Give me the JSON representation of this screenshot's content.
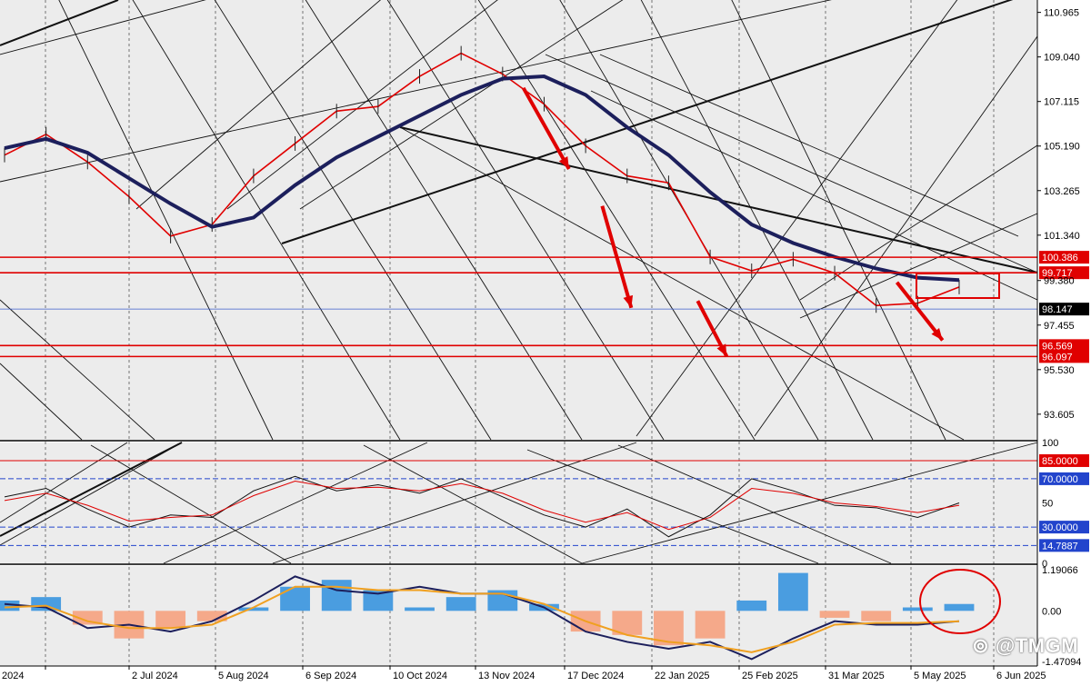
{
  "chart_data": [
    {
      "type": "line",
      "panel": "price",
      "instrument_note": "",
      "x_dates": [
        "2024",
        "2 Jul 2024",
        "5 Aug 2024",
        "6 Sep 2024",
        "10 Oct 2024",
        "13 Nov 2024",
        "17 Dec 2024",
        "22 Jan 2025",
        "25 Feb 2025",
        "31 Mar 2025",
        "5 May 2025",
        "6 Jun 2025"
      ],
      "y_ticks": [
        "110.965",
        "109.040",
        "107.115",
        "105.190",
        "103.265",
        "101.340",
        "99.380",
        "97.455",
        "95.530",
        "93.605"
      ],
      "ylim": [
        92.5,
        111.5
      ],
      "series": [
        {
          "values": [
            [
              0,
              104.8
            ],
            [
              1,
              105.7
            ],
            [
              2,
              104.5
            ],
            [
              3,
              103.0
            ],
            [
              4,
              101.3
            ],
            [
              5,
              101.8
            ],
            [
              6,
              103.9
            ],
            [
              7,
              105.3
            ],
            [
              8,
              106.7
            ],
            [
              9,
              106.9
            ],
            [
              10,
              108.2
            ],
            [
              11,
              109.2
            ],
            [
              12,
              108.3
            ],
            [
              13,
              107.0
            ],
            [
              14,
              105.2
            ],
            [
              15,
              103.9
            ],
            [
              16,
              103.6
            ],
            [
              17,
              100.4
            ],
            [
              18,
              99.8
            ],
            [
              19,
              100.3
            ],
            [
              20,
              99.7
            ],
            [
              21,
              98.3
            ],
            [
              22,
              98.4
            ],
            [
              23,
              99.1
            ]
          ]
        },
        {
          "values": [
            [
              0,
              105.1
            ],
            [
              1,
              105.5
            ],
            [
              2,
              104.9
            ],
            [
              3,
              103.8
            ],
            [
              4,
              102.7
            ],
            [
              5,
              101.7
            ],
            [
              6,
              102.1
            ],
            [
              7,
              103.5
            ],
            [
              8,
              104.7
            ],
            [
              9,
              105.6
            ],
            [
              10,
              106.5
            ],
            [
              11,
              107.4
            ],
            [
              12,
              108.1
            ],
            [
              13,
              108.2
            ],
            [
              14,
              107.4
            ],
            [
              15,
              106.0
            ],
            [
              16,
              104.8
            ],
            [
              17,
              103.2
            ],
            [
              18,
              101.8
            ],
            [
              19,
              101.0
            ],
            [
              20,
              100.4
            ],
            [
              21,
              99.9
            ],
            [
              22,
              99.5
            ],
            [
              23,
              99.4
            ]
          ]
        }
      ],
      "horizontal_levels": [
        {
          "value": 100.386,
          "label": "100.386",
          "color": "#e00000"
        },
        {
          "value": 99.717,
          "label": "99.717",
          "color": "#e00000"
        },
        {
          "value": 98.147,
          "label": "98.147",
          "color": "#3a5ccc"
        },
        {
          "value": 96.569,
          "label": "96.569",
          "color": "#e00000"
        },
        {
          "value": 96.097,
          "label": "96.097",
          "color": "#e00000"
        }
      ],
      "arrows": [
        {
          "from": [
            12.5,
            107.7
          ],
          "to": [
            13.6,
            104.2
          ]
        },
        {
          "from": [
            14.4,
            102.6
          ],
          "to": [
            15.1,
            98.2
          ]
        },
        {
          "from": [
            16.7,
            98.5
          ],
          "to": [
            17.4,
            96.1
          ]
        },
        {
          "from": [
            21.5,
            99.3
          ],
          "to": [
            22.6,
            96.8
          ]
        }
      ]
    },
    {
      "type": "line",
      "panel": "oscillator",
      "y_ticks": [
        "100",
        "50",
        "0"
      ],
      "ylim": [
        0,
        100
      ],
      "series": [
        {
          "values": [
            [
              0,
              55
            ],
            [
              1,
              62
            ],
            [
              2,
              45
            ],
            [
              3,
              30
            ],
            [
              4,
              40
            ],
            [
              5,
              38
            ],
            [
              6,
              60
            ],
            [
              7,
              72
            ],
            [
              8,
              60
            ],
            [
              9,
              65
            ],
            [
              10,
              58
            ],
            [
              11,
              70
            ],
            [
              12,
              55
            ],
            [
              13,
              40
            ],
            [
              14,
              30
            ],
            [
              15,
              45
            ],
            [
              16,
              22
            ],
            [
              17,
              40
            ],
            [
              18,
              70
            ],
            [
              19,
              60
            ],
            [
              20,
              48
            ],
            [
              21,
              46
            ],
            [
              22,
              38
            ],
            [
              23,
              50
            ]
          ]
        },
        {
          "values": [
            [
              0,
              52
            ],
            [
              1,
              58
            ],
            [
              2,
              48
            ],
            [
              3,
              35
            ],
            [
              4,
              38
            ],
            [
              5,
              40
            ],
            [
              6,
              56
            ],
            [
              7,
              68
            ],
            [
              8,
              62
            ],
            [
              9,
              63
            ],
            [
              10,
              60
            ],
            [
              11,
              66
            ],
            [
              12,
              58
            ],
            [
              13,
              44
            ],
            [
              14,
              34
            ],
            [
              15,
              42
            ],
            [
              16,
              28
            ],
            [
              17,
              38
            ],
            [
              18,
              62
            ],
            [
              19,
              58
            ],
            [
              20,
              50
            ],
            [
              21,
              47
            ],
            [
              22,
              42
            ],
            [
              23,
              48
            ]
          ]
        }
      ],
      "horizontal_levels": [
        {
          "value": 85.0,
          "label": "85.0000",
          "color": "#e00000"
        },
        {
          "value": 70.0,
          "label": "70.0000",
          "color": "#2244cc"
        },
        {
          "value": 30.0,
          "label": "30.0000",
          "color": "#2244cc"
        },
        {
          "value": 14.7887,
          "label": "14.7887",
          "color": "#2244cc"
        }
      ]
    },
    {
      "type": "bar",
      "panel": "macd",
      "y_ticks": [
        "1.19066",
        "0.00",
        "-1.47094"
      ],
      "ylim": [
        -1.6,
        1.3
      ],
      "values": [
        0.3,
        0.4,
        -0.4,
        -0.8,
        -0.5,
        -0.3,
        0.1,
        0.7,
        0.9,
        0.6,
        0.1,
        0.4,
        0.6,
        0.2,
        -0.6,
        -0.7,
        -1.0,
        -0.8,
        0.3,
        1.1,
        -0.2,
        -0.3,
        0.1,
        0.2
      ],
      "series": [
        {
          "values": [
            0.2,
            0.1,
            -0.5,
            -0.4,
            -0.6,
            -0.3,
            0.3,
            1.0,
            0.6,
            0.5,
            0.7,
            0.5,
            0.5,
            0.1,
            -0.6,
            -0.9,
            -1.1,
            -0.9,
            -1.4,
            -0.8,
            -0.3,
            -0.4,
            -0.4,
            -0.3
          ]
        },
        {
          "values": [
            0.1,
            0.15,
            -0.3,
            -0.5,
            -0.5,
            -0.4,
            0.1,
            0.7,
            0.7,
            0.6,
            0.6,
            0.5,
            0.5,
            0.2,
            -0.3,
            -0.7,
            -0.9,
            -1.0,
            -1.2,
            -0.9,
            -0.4,
            -0.35,
            -0.35,
            -0.3
          ]
        }
      ]
    }
  ],
  "colors": {
    "background": "#ececec",
    "grid": "#404040",
    "red": "#e00000",
    "navy": "#1c1f5c",
    "blue": "#2244cc",
    "orange": "#f0a020",
    "hist_pos": "#4a9de0",
    "hist_neg": "#f5a98a",
    "price_tag_bg": "#000000"
  },
  "watermark": "@TMGM",
  "watermark_icon": "tmgm-logo-icon"
}
